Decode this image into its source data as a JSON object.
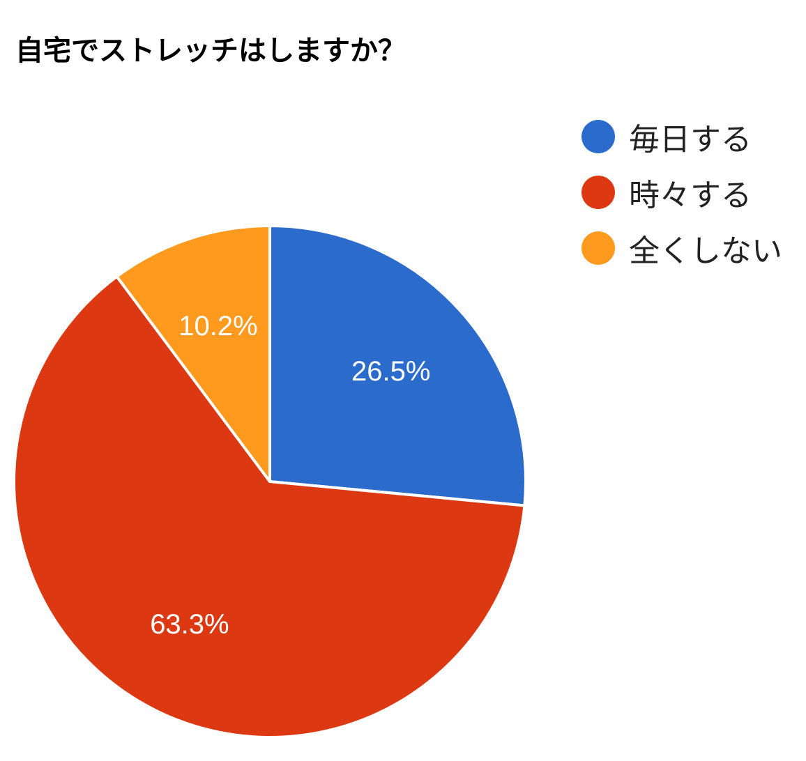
{
  "chart_data": {
    "type": "pie",
    "title": "自宅でストレッチはしますか？",
    "categories": [
      "毎日する",
      "時々する",
      "全くしない"
    ],
    "values": [
      26.5,
      63.3,
      10.2
    ],
    "value_labels": [
      "26.5%",
      "63.3%",
      "10.2%"
    ],
    "colors": [
      "#2A6BCB",
      "#DC3912",
      "#FF9A1E"
    ],
    "legend": "right",
    "start_angle_deg": 0,
    "direction": "clockwise"
  }
}
